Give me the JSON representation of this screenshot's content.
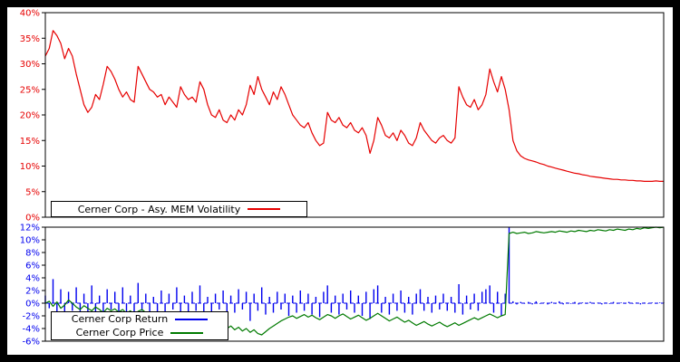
{
  "figure": {
    "background": "#000000",
    "plot_background": "#ffffff"
  },
  "chart_data": [
    {
      "panel": "volatility",
      "type": "line",
      "title": "",
      "xlabel": "",
      "ylabel": "",
      "axis_color": "#e60000",
      "ylim": [
        0,
        40
      ],
      "grid": false,
      "x_axis_labels": [],
      "yticks": [
        {
          "value": 0,
          "label": "0%"
        },
        {
          "value": 5,
          "label": "5%"
        },
        {
          "value": 10,
          "label": "10%"
        },
        {
          "value": 15,
          "label": "15%"
        },
        {
          "value": 20,
          "label": "20%"
        },
        {
          "value": 25,
          "label": "25%"
        },
        {
          "value": 30,
          "label": "30%"
        },
        {
          "value": 35,
          "label": "35%"
        },
        {
          "value": 40,
          "label": "40%"
        }
      ],
      "series": [
        {
          "name": "Cerner Corp - Asy. MEM Volatility",
          "type": "line",
          "color": "#e60000",
          "values": [
            31.5,
            33,
            36.5,
            35.5,
            34,
            31,
            33,
            31.5,
            28,
            25,
            22,
            20.5,
            21.5,
            24,
            23,
            26,
            29.5,
            28.5,
            27,
            25,
            23.5,
            24.5,
            23,
            22.5,
            29.5,
            28,
            26.5,
            25,
            24.5,
            23.5,
            24,
            22,
            23.5,
            22.5,
            21.5,
            25.5,
            24,
            23,
            23.5,
            22.5,
            26.5,
            25,
            22,
            20,
            19.5,
            21,
            19,
            18.5,
            20,
            19,
            21,
            20,
            22,
            25.8,
            24,
            27.5,
            25,
            23.5,
            22,
            24.5,
            23,
            25.5,
            24,
            22,
            20,
            19,
            18,
            17.5,
            18.5,
            16.5,
            15,
            14,
            14.5,
            20.5,
            19,
            18.5,
            19.5,
            18,
            17.5,
            18.5,
            17,
            16.5,
            17.5,
            16,
            12.5,
            15,
            19.5,
            18,
            16,
            15.5,
            16.5,
            15,
            17,
            16,
            14.5,
            14,
            15.5,
            18.5,
            17,
            16,
            15,
            14.5,
            15.5,
            16,
            15,
            14.5,
            15.5,
            25.5,
            23.5,
            22,
            21.5,
            23,
            21,
            22,
            24,
            29,
            26.5,
            24.5,
            27.5,
            25,
            21,
            15,
            13,
            12,
            11.5,
            11.2,
            11,
            10.8,
            10.5,
            10.3,
            10,
            9.8,
            9.6,
            9.4,
            9.2,
            9,
            8.8,
            8.6,
            8.5,
            8.3,
            8.2,
            8,
            7.9,
            7.8,
            7.7,
            7.6,
            7.5,
            7.4,
            7.4,
            7.3,
            7.3,
            7.2,
            7.2,
            7.1,
            7.1,
            7,
            7,
            7,
            7.1,
            7,
            7
          ]
        }
      ],
      "legend": {
        "position": "bottom-left",
        "entries": [
          {
            "label": "Cerner Corp - Asy. MEM Volatility",
            "color": "#e60000"
          }
        ]
      }
    },
    {
      "panel": "return-price",
      "type": "mixed",
      "title": "",
      "xlabel": "",
      "ylabel": "",
      "axis_color": "#0000ee",
      "ylim": [
        -6,
        12
      ],
      "grid": false,
      "x_axis_labels": [],
      "zero_line": {
        "color": "#0000ee",
        "dash": "4,3"
      },
      "yticks": [
        {
          "value": -6,
          "label": "-6%"
        },
        {
          "value": -4,
          "label": "-4%"
        },
        {
          "value": -2,
          "label": "-2%"
        },
        {
          "value": 0,
          "label": "0%"
        },
        {
          "value": 2,
          "label": "2%"
        },
        {
          "value": 4,
          "label": "4%"
        },
        {
          "value": 6,
          "label": "6%"
        },
        {
          "value": 8,
          "label": "8%"
        },
        {
          "value": 10,
          "label": "10%"
        },
        {
          "value": 12,
          "label": "12%"
        }
      ],
      "series": [
        {
          "name": "Cerner Corp Return",
          "type": "bar",
          "color": "#0000ee",
          "values": [
            1.2,
            -0.8,
            3.8,
            -1.5,
            2.2,
            -2.5,
            1.8,
            -1.2,
            2.5,
            -1.8,
            1.5,
            -2.2,
            2.8,
            -1.5,
            1.2,
            -2.8,
            2.2,
            -1,
            1.8,
            -1.5,
            2.5,
            -2,
            1.2,
            -1.8,
            3.2,
            -1.2,
            1.5,
            -2.5,
            1,
            -1.5,
            2,
            -2.2,
            1.5,
            -1,
            2.5,
            -1.8,
            1.2,
            -2,
            1.8,
            -1.2,
            2.8,
            -1.5,
            1,
            -2.5,
            1.5,
            -1,
            2,
            -1.8,
            1.2,
            -1.5,
            2.2,
            -1,
            1.8,
            -2.8,
            1.5,
            -1.2,
            2.5,
            -1.8,
            1,
            -1.5,
            1.8,
            -1,
            1.5,
            -2,
            1.2,
            -1.5,
            2,
            -1.2,
            1.5,
            -1.8,
            1,
            -2.2,
            1.8,
            2.8,
            -1.5,
            1.2,
            -1.8,
            1.5,
            -1,
            2,
            -1.5,
            1.2,
            -2,
            1.8,
            -2.5,
            2.2,
            2.8,
            -1.5,
            1,
            -1.8,
            1.5,
            -1.2,
            2,
            -1.5,
            1,
            -1.8,
            1.5,
            2.2,
            -1.2,
            1,
            -1.5,
            1.2,
            -1,
            1.5,
            -1.2,
            1,
            -1.5,
            3,
            -1.8,
            1.2,
            -1,
            1.5,
            -1.2,
            1.8,
            2.2,
            2.8,
            -1.5,
            1.8,
            -2,
            1.5,
            12.9,
            0.3,
            -0.2,
            0.2,
            -0.1,
            0.2,
            -0.2,
            0.3,
            -0.1,
            0.1,
            -0.2,
            0.2,
            -0.1,
            0.3,
            -0.2,
            0.1,
            -0.1,
            0.2,
            -0.2,
            0.1,
            -0.1,
            0.2,
            -0.1,
            0.1,
            -0.2,
            0.1,
            -0.1,
            0.2,
            -0.1,
            0.1,
            -0.1,
            0.2,
            -0.1,
            0.1,
            -0.2,
            0.1,
            -0.1,
            0.1,
            -0.1,
            0.1,
            0.1
          ]
        },
        {
          "name": "Cerner Corp Price",
          "type": "line",
          "color": "#007a00",
          "values": [
            0,
            0.3,
            -0.5,
            0.2,
            -0.8,
            -0.3,
            0.5,
            0,
            -0.6,
            -1,
            -0.4,
            -0.8,
            -1.2,
            -0.6,
            -1,
            -1.5,
            -0.8,
            -1.2,
            -0.9,
            -1.4,
            -1,
            -1.6,
            -1.2,
            -1.8,
            -1.3,
            -1,
            -1.5,
            -2,
            -1.6,
            -2.2,
            -1.8,
            -2.4,
            -2,
            -2.6,
            -2.2,
            -2.8,
            -2.4,
            -3,
            -2.6,
            -3.2,
            -2.8,
            -3.4,
            -3,
            -3.6,
            -3.2,
            -3.8,
            -3.4,
            -4,
            -3.6,
            -4.2,
            -3.8,
            -4.4,
            -4,
            -4.6,
            -4.2,
            -4.8,
            -5,
            -4.5,
            -4,
            -3.6,
            -3.2,
            -2.8,
            -2.5,
            -2.2,
            -2,
            -2.4,
            -2.1,
            -1.8,
            -2.2,
            -1.9,
            -2.3,
            -2.6,
            -2.2,
            -1.8,
            -2,
            -2.4,
            -2,
            -1.7,
            -2.1,
            -2.5,
            -2.2,
            -1.9,
            -2.3,
            -2.7,
            -2.4,
            -2,
            -1.6,
            -2,
            -2.4,
            -2.8,
            -2.5,
            -2.2,
            -2.6,
            -3,
            -2.7,
            -3.1,
            -3.5,
            -3.2,
            -2.9,
            -3.3,
            -3.6,
            -3.3,
            -3,
            -3.4,
            -3.7,
            -3.4,
            -3.1,
            -3.5,
            -3.2,
            -2.9,
            -2.6,
            -2.3,
            -2.6,
            -2.3,
            -2,
            -1.7,
            -2,
            -2.3,
            -2,
            -1.8,
            11,
            11.2,
            11,
            11.1,
            11.2,
            11,
            11.1,
            11.3,
            11.2,
            11.1,
            11.2,
            11.3,
            11.2,
            11.4,
            11.3,
            11.2,
            11.4,
            11.3,
            11.5,
            11.4,
            11.3,
            11.5,
            11.4,
            11.6,
            11.5,
            11.4,
            11.6,
            11.5,
            11.7,
            11.6,
            11.5,
            11.7,
            11.6,
            11.8,
            11.7,
            11.9,
            11.8,
            11.9,
            12,
            11.9,
            12
          ]
        }
      ],
      "legend": {
        "position": "bottom-left",
        "entries": [
          {
            "label": "Cerner Corp Return",
            "color": "#0000ee"
          },
          {
            "label": "Cerner Corp Price",
            "color": "#007a00"
          }
        ]
      }
    }
  ]
}
